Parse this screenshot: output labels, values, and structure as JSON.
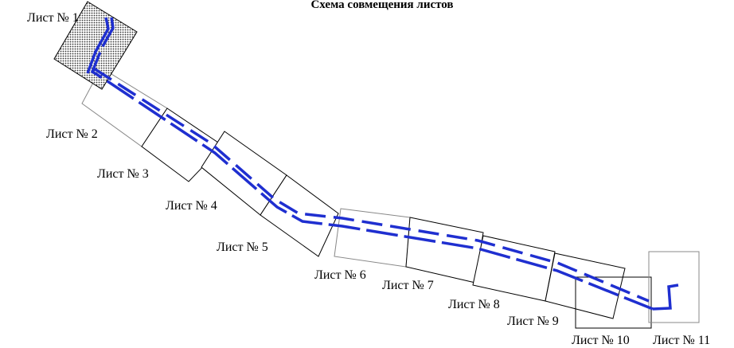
{
  "title": "Схема совмещения листов",
  "sheets": [
    "Лист № 1",
    "Лист № 2",
    "Лист № 3",
    "Лист № 4",
    "Лист № 5",
    "Лист № 6",
    "Лист № 7",
    "Лист № 8",
    "Лист № 9",
    "Лист № 10",
    "Лист № 11"
  ]
}
